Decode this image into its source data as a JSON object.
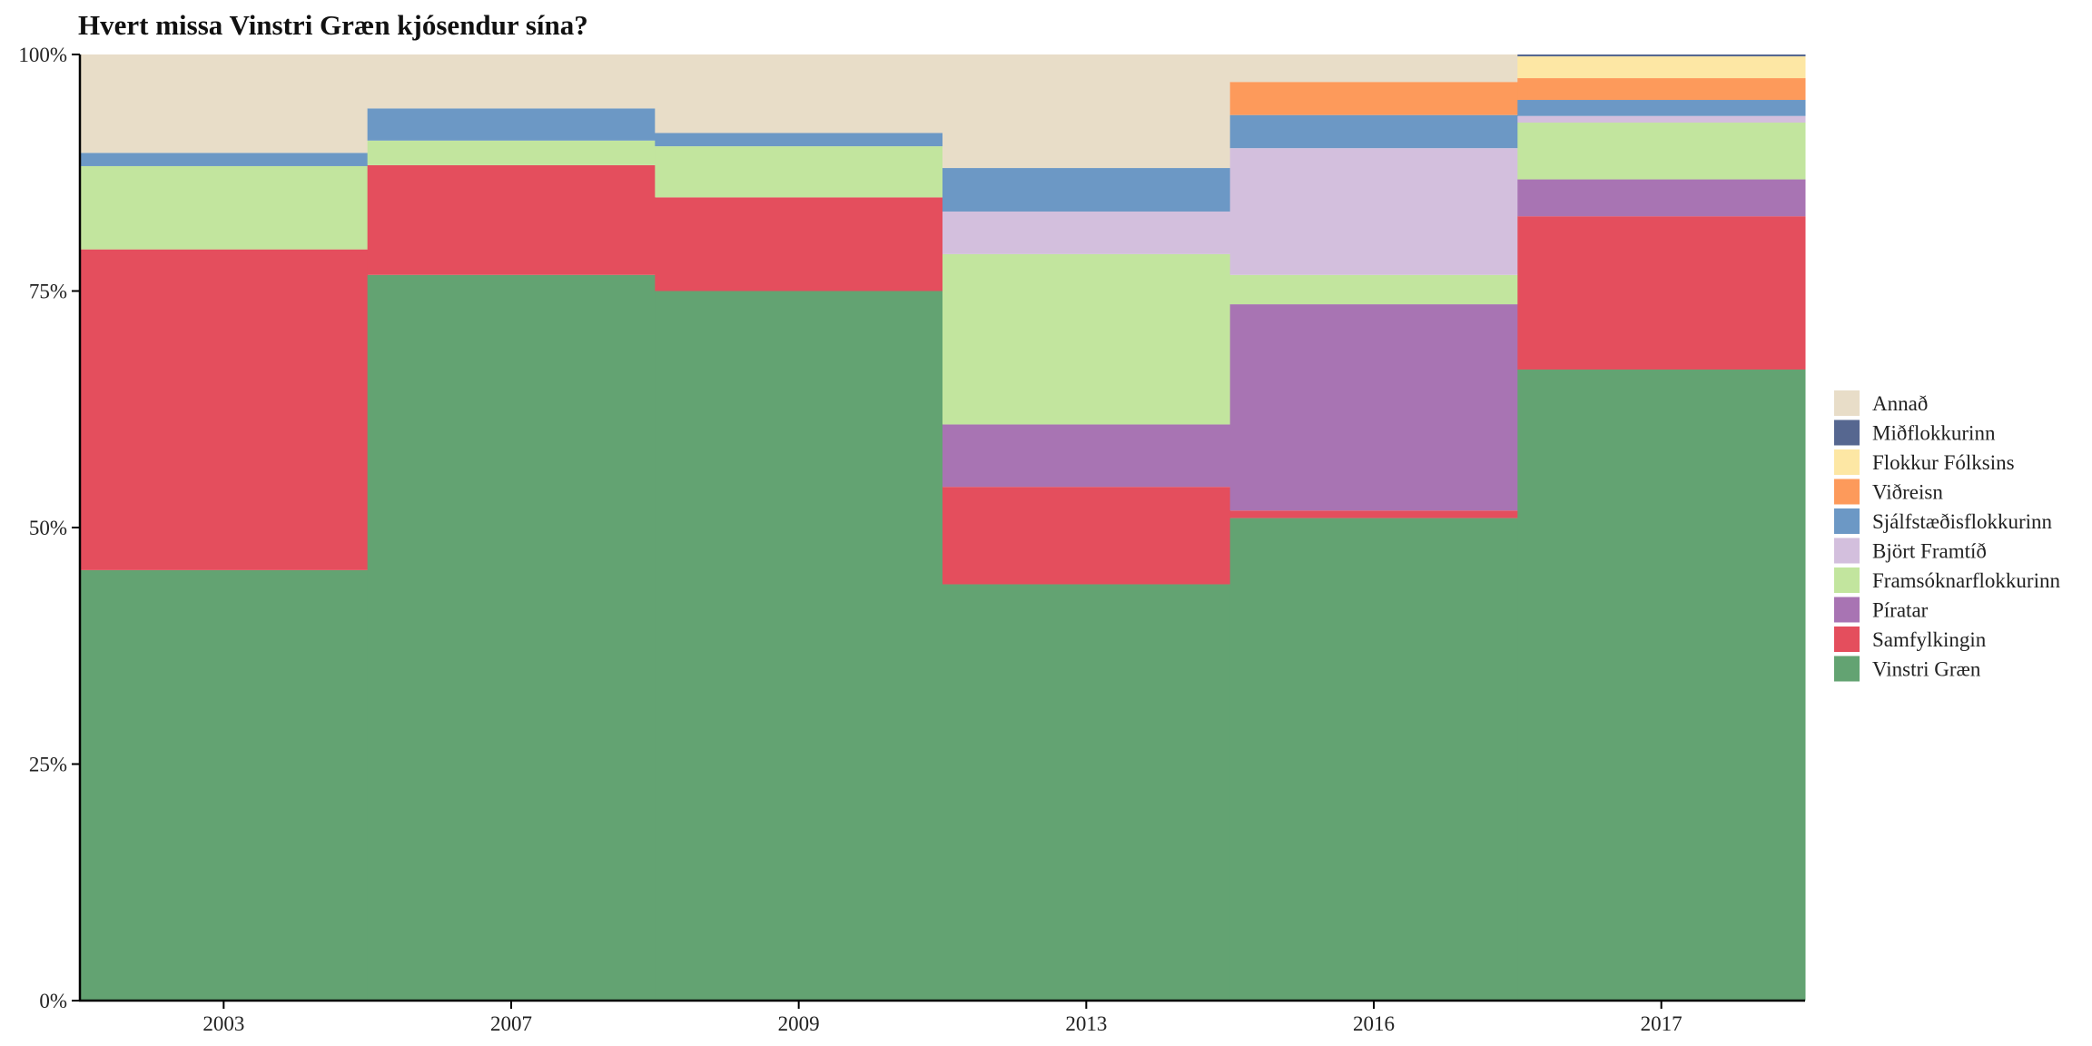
{
  "chart_data": {
    "type": "bar",
    "stacked": true,
    "title": "Hvert missa Vinstri Græn kjósendur sína?",
    "xlabel": "",
    "ylabel": "",
    "ylim": [
      0,
      100
    ],
    "y_ticks": [
      "0%",
      "25%",
      "50%",
      "75%",
      "100%"
    ],
    "categories": [
      "2003",
      "2007",
      "2009",
      "2013",
      "2016",
      "2017"
    ],
    "legend_position": "right",
    "series": [
      {
        "name": "Vinstri Græn",
        "color": "#63a372",
        "values": [
          45.5,
          76.7,
          75.0,
          44.0,
          51.0,
          66.7
        ]
      },
      {
        "name": "Samfylkingin",
        "color": "#e44e5d",
        "values": [
          33.9,
          11.6,
          9.9,
          10.3,
          0.8,
          16.2
        ]
      },
      {
        "name": "Píratar",
        "color": "#a874b3",
        "values": [
          0,
          0,
          0,
          6.6,
          21.8,
          3.9
        ]
      },
      {
        "name": "Framsóknarflokkurinn",
        "color": "#c2e59e",
        "values": [
          8.8,
          2.6,
          5.4,
          18.0,
          3.1,
          6.0
        ]
      },
      {
        "name": "Björt Framtíð",
        "color": "#d3bfdd",
        "values": [
          0,
          0,
          0,
          4.5,
          13.4,
          0.7
        ]
      },
      {
        "name": "Sjálfstæðisflokkurinn",
        "color": "#6c98c5",
        "values": [
          1.4,
          3.4,
          1.4,
          4.6,
          3.5,
          1.7
        ]
      },
      {
        "name": "Viðreisn",
        "color": "#fd9a5b",
        "values": [
          0,
          0,
          0,
          0,
          3.5,
          2.3
        ]
      },
      {
        "name": "Flokkur Fólksins",
        "color": "#fde7a4",
        "values": [
          0,
          0,
          0,
          0,
          0,
          2.3
        ]
      },
      {
        "name": "Miðflokkurinn",
        "color": "#566790",
        "values": [
          0,
          0,
          0,
          0,
          0,
          0.4
        ]
      },
      {
        "name": "Annað",
        "color": "#e8ddc8",
        "values": [
          10.4,
          5.7,
          8.3,
          12.0,
          2.9,
          0
        ]
      }
    ]
  }
}
